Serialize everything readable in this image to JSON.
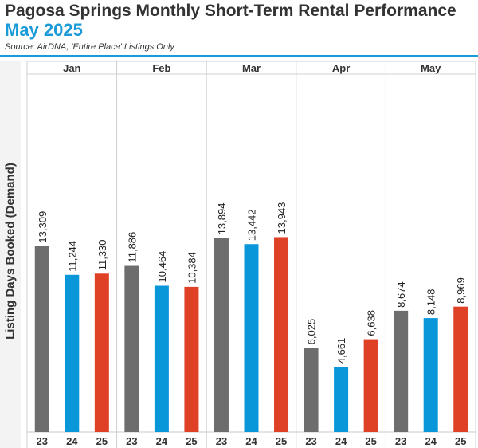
{
  "header": {
    "title": "Pagosa Springs Monthly Short-Term Rental Performance",
    "subtitle": "May 2025",
    "source": "Source: AirDNA, 'Entire Place' Listings Only"
  },
  "chart_data": {
    "type": "bar",
    "title": "Pagosa Springs Monthly Short-Term Rental Performance",
    "ylabel": "Listing Days Booked (Demand)",
    "xlabel": "",
    "ylim": [
      0,
      25600
    ],
    "grid": false,
    "categories": [
      "Jan",
      "Feb",
      "Mar",
      "Apr",
      "May"
    ],
    "sub_categories": [
      "23",
      "24",
      "25"
    ],
    "colors": {
      "23": "#6d6d6d",
      "24": "#0a97d9",
      "25": "#de4126"
    },
    "series": [
      {
        "name": "23",
        "values": [
          13309,
          11886,
          13894,
          6025,
          8674
        ],
        "labels": [
          "13,309",
          "11,886",
          "13,894",
          "6,025",
          "8,674"
        ]
      },
      {
        "name": "24",
        "values": [
          11244,
          10464,
          13442,
          4661,
          8148
        ],
        "labels": [
          "11,244",
          "10,464",
          "13,442",
          "4,661",
          "8,148"
        ]
      },
      {
        "name": "25",
        "values": [
          11330,
          10384,
          13943,
          6638,
          8969
        ],
        "labels": [
          "11,330",
          "10,384",
          "13,943",
          "6,638",
          "8,969"
        ]
      }
    ]
  }
}
